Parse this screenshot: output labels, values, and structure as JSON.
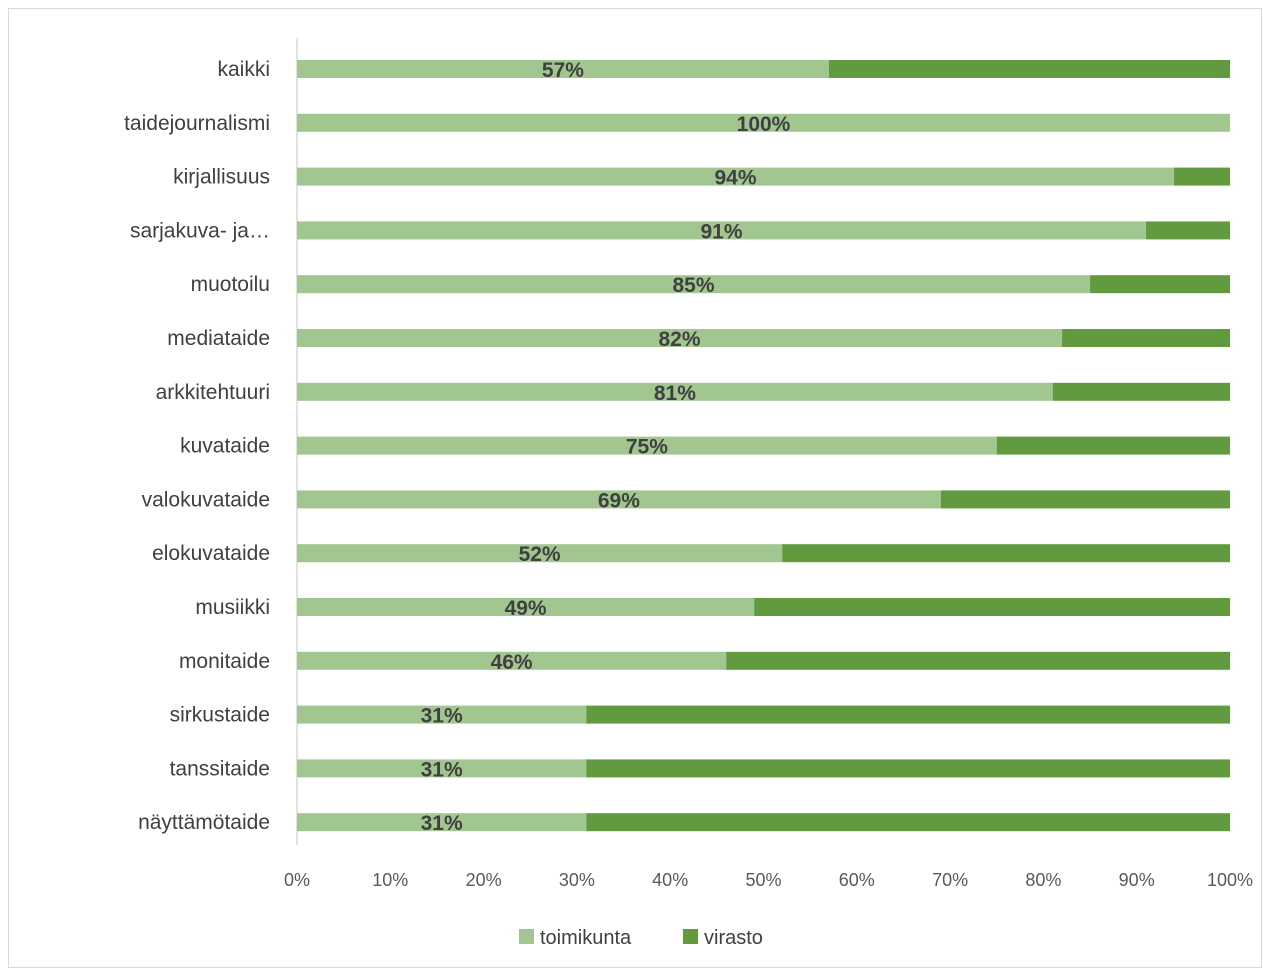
{
  "chart_data": {
    "type": "bar",
    "orientation": "horizontal",
    "stacked": true,
    "percent_stacked": true,
    "categories": [
      "kaikki",
      "taidejournalismi",
      "kirjallisuus",
      "sarjakuva- ja…",
      "muotoilu",
      "mediataide",
      "arkkitehtuuri",
      "kuvataide",
      "valokuvataide",
      "elokuvataide",
      "musiikki",
      "monitaide",
      "sirkustaide",
      "tanssitaide",
      "näyttämötaide"
    ],
    "series": [
      {
        "name": "toimikunta",
        "color": "#a2c68f",
        "values": [
          57,
          100,
          94,
          91,
          85,
          82,
          81,
          75,
          69,
          52,
          49,
          46,
          31,
          31,
          31
        ],
        "labels": [
          "57%",
          "100%",
          "94%",
          "91%",
          "85%",
          "82%",
          "81%",
          "75%",
          "69%",
          "52%",
          "49%",
          "46%",
          "31%",
          "31%",
          "31%"
        ]
      },
      {
        "name": "virasto",
        "color": "#629b3f",
        "values": [
          43,
          0,
          6,
          9,
          15,
          18,
          19,
          25,
          31,
          48,
          51,
          54,
          69,
          69,
          69
        ]
      }
    ],
    "x_ticks": [
      "0%",
      "10%",
      "20%",
      "30%",
      "40%",
      "50%",
      "60%",
      "70%",
      "80%",
      "90%",
      "100%"
    ],
    "xlim": [
      0,
      100
    ],
    "grid": false,
    "legend_position": "bottom",
    "title": "",
    "xlabel": "",
    "ylabel": ""
  }
}
